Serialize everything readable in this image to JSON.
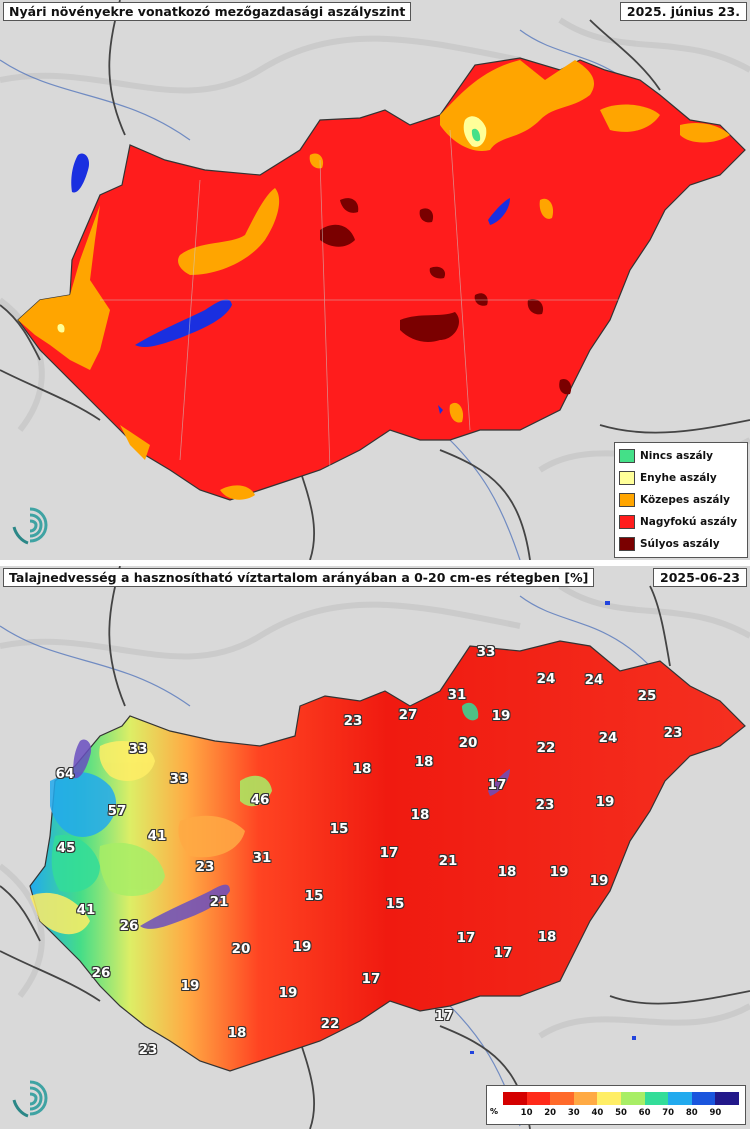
{
  "top_panel": {
    "title": "Nyári növényekre vonatkozó mezőgazdasági aszályszint",
    "date": "2025. június 23.",
    "legend": [
      {
        "label": "Nincs aszály",
        "color": "#44e088"
      },
      {
        "label": "Enyhe aszály",
        "color": "#ffff99"
      },
      {
        "label": "Közepes aszály",
        "color": "#ffa500"
      },
      {
        "label": "Nagyfokú aszály",
        "color": "#ff1c1c"
      },
      {
        "label": "Súlyos aszály",
        "color": "#7a0000"
      }
    ]
  },
  "bottom_panel": {
    "title": "Talajnedvesség a hasznosítható víztartalom arányában a 0-20 cm-es rétegben [%]",
    "date": "2025-06-23",
    "station_values": [
      {
        "value": "33"
      },
      {
        "value": "24"
      },
      {
        "value": "24"
      },
      {
        "value": "31"
      },
      {
        "value": "25"
      },
      {
        "value": "23"
      },
      {
        "value": "27"
      },
      {
        "value": "19"
      },
      {
        "value": "33"
      },
      {
        "value": "20"
      },
      {
        "value": "22"
      },
      {
        "value": "24"
      },
      {
        "value": "23"
      },
      {
        "value": "64"
      },
      {
        "value": "18"
      },
      {
        "value": "18"
      },
      {
        "value": "33"
      },
      {
        "value": "17"
      },
      {
        "value": "46"
      },
      {
        "value": "57"
      },
      {
        "value": "23"
      },
      {
        "value": "19"
      },
      {
        "value": "41"
      },
      {
        "value": "15"
      },
      {
        "value": "18"
      },
      {
        "value": "45"
      },
      {
        "value": "17"
      },
      {
        "value": "31"
      },
      {
        "value": "21"
      },
      {
        "value": "23"
      },
      {
        "value": "18"
      },
      {
        "value": "19"
      },
      {
        "value": "19"
      },
      {
        "value": "21"
      },
      {
        "value": "15"
      },
      {
        "value": "15"
      },
      {
        "value": "41"
      },
      {
        "value": "26"
      },
      {
        "value": "17"
      },
      {
        "value": "18"
      },
      {
        "value": "20"
      },
      {
        "value": "19"
      },
      {
        "value": "17"
      },
      {
        "value": "26"
      },
      {
        "value": "19"
      },
      {
        "value": "19"
      },
      {
        "value": "17"
      },
      {
        "value": "18"
      },
      {
        "value": "22"
      },
      {
        "value": "17"
      },
      {
        "value": "23"
      }
    ],
    "colorbar": {
      "unit": "%",
      "ticks": [
        "10",
        "20",
        "30",
        "40",
        "50",
        "60",
        "70",
        "80",
        "90"
      ],
      "colors": [
        "#d40000",
        "#ff2a1a",
        "#ff6a2a",
        "#ffaa44",
        "#ffee66",
        "#a8ee66",
        "#33dd99",
        "#22aaee",
        "#1a55dd",
        "#22188a"
      ]
    }
  }
}
